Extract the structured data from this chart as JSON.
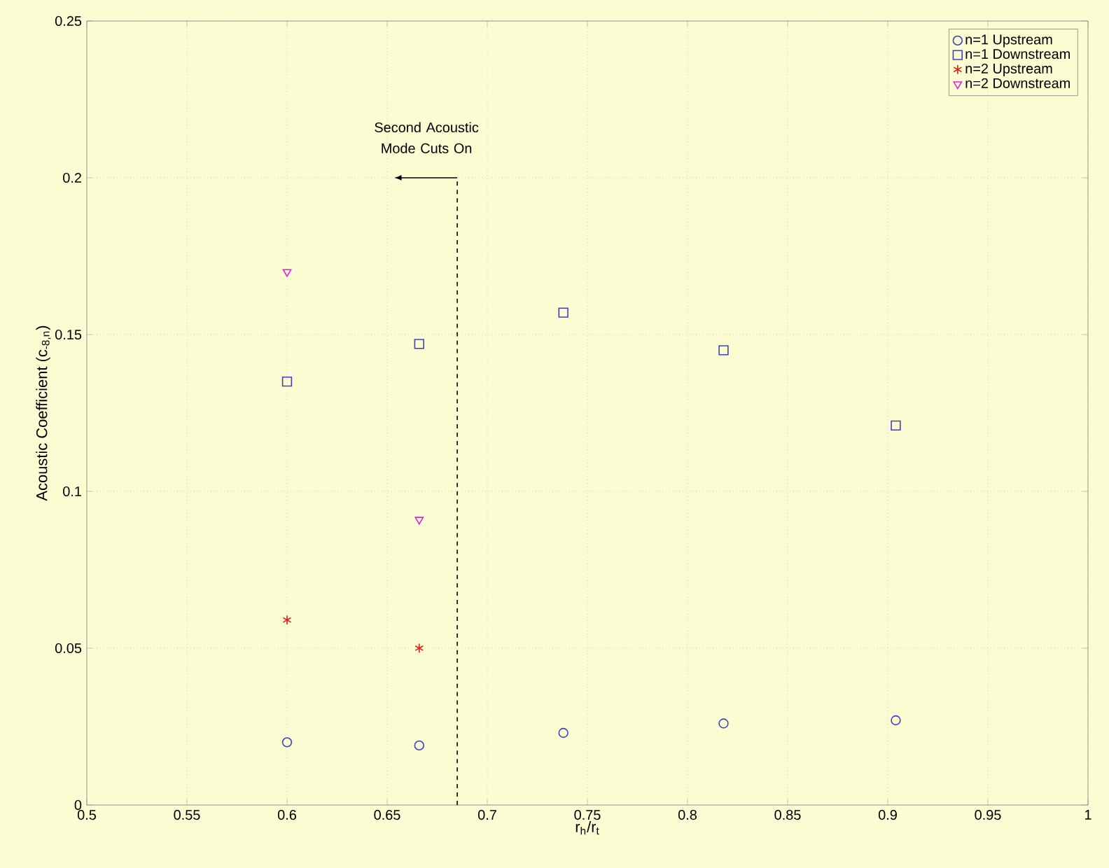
{
  "chart_data": {
    "type": "scatter",
    "xlabel": "r$_{h}$/r$_{t}$",
    "ylabel": "Acoustic Coefficient (c$_{-8,n}$)",
    "xlim": [
      0.5,
      1
    ],
    "ylim": [
      0,
      0.25
    ],
    "xticks": [
      0.5,
      0.55,
      0.6,
      0.65,
      0.7,
      0.75,
      0.8,
      0.85,
      0.9,
      0.95,
      1
    ],
    "yticks": [
      0,
      0.05,
      0.1,
      0.15,
      0.2,
      0.25
    ],
    "grid": true,
    "legend": "top right",
    "series": [
      {
        "name": "n=1 Upstream",
        "color": "#4040c0",
        "marker": "circle",
        "x": [
          0.6,
          0.666,
          0.738,
          0.818,
          0.904
        ],
        "values": [
          0.02,
          0.019,
          0.023,
          0.026,
          0.027
        ]
      },
      {
        "name": "n=1 Downstream",
        "color": "#4040c0",
        "marker": "square",
        "x": [
          0.6,
          0.666,
          0.738,
          0.818,
          0.904
        ],
        "values": [
          0.135,
          0.147,
          0.157,
          0.145,
          0.121
        ]
      },
      {
        "name": "n=2 Upstream",
        "color": "#e02020",
        "marker": "cross",
        "x": [
          0.6,
          0.666
        ],
        "values": [
          0.059,
          0.05
        ]
      },
      {
        "name": "n=2 Downstream",
        "color": "#e020e0",
        "marker": "triangle",
        "x": [
          0.6,
          0.666
        ],
        "values": [
          0.17,
          0.091
        ]
      }
    ],
    "ref_lines": [
      {
        "axis": "x",
        "value": 0.685,
        "line_style": "dashed",
        "color": "#000000"
      }
    ],
    "annotations": [
      "Second Acoustic Mode Cuts On"
    ]
  }
}
